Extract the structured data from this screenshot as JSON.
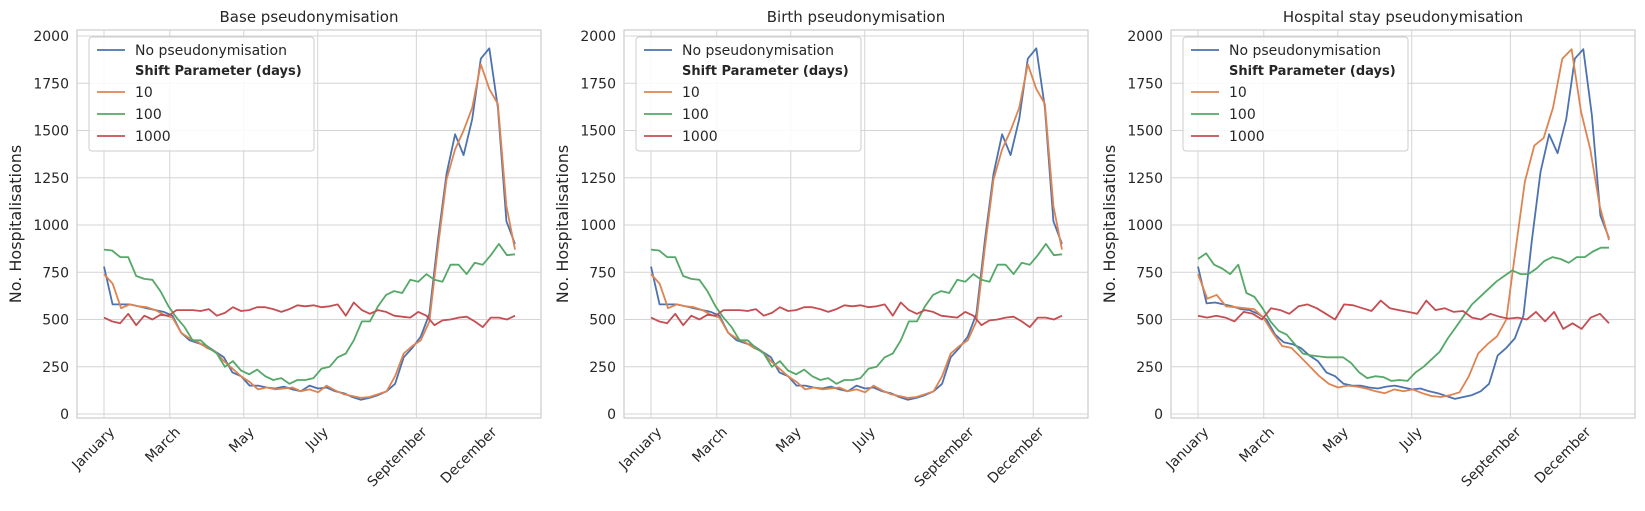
{
  "chart_data": [
    {
      "type": "line",
      "title": "Base pseudonymisation",
      "xlabel": "",
      "ylabel": "No. Hospitalisations",
      "x_ticks": [
        "January",
        "March",
        "May",
        "July",
        "September",
        "December"
      ],
      "ylim": [
        0,
        2000
      ],
      "y_ticks": [
        0,
        250,
        500,
        750,
        1000,
        1250,
        1500,
        1750,
        2000
      ],
      "grid": true,
      "legend": {
        "placement": "top-left",
        "title": "Shift Parameter (days)"
      },
      "series": [
        {
          "name": "No pseudonymisation",
          "color": "#4c72b0",
          "values": [
            780,
            580,
            580,
            580,
            570,
            560,
            550,
            540,
            520,
            430,
            390,
            375,
            360,
            330,
            300,
            220,
            200,
            150,
            150,
            140,
            135,
            145,
            130,
            120,
            150,
            135,
            140,
            120,
            110,
            90,
            75,
            85,
            100,
            120,
            160,
            300,
            350,
            410,
            530,
            920,
            1270,
            1480,
            1370,
            1560,
            1880,
            1935,
            1620,
            1020,
            900
          ]
        },
        {
          "name": "10",
          "color": "#dd8452",
          "values": [
            740,
            690,
            560,
            580,
            570,
            565,
            550,
            525,
            510,
            430,
            400,
            380,
            350,
            330,
            280,
            240,
            200,
            170,
            130,
            140,
            130,
            135,
            140,
            120,
            130,
            115,
            150,
            125,
            105,
            95,
            85,
            90,
            105,
            120,
            200,
            320,
            360,
            390,
            490,
            880,
            1240,
            1400,
            1500,
            1620,
            1850,
            1720,
            1640,
            1100,
            870
          ]
        },
        {
          "name": "100",
          "color": "#55a868",
          "values": [
            870,
            865,
            830,
            830,
            730,
            715,
            710,
            650,
            570,
            510,
            460,
            390,
            390,
            350,
            320,
            250,
            280,
            230,
            210,
            235,
            200,
            180,
            190,
            160,
            180,
            180,
            190,
            240,
            250,
            300,
            320,
            390,
            490,
            490,
            570,
            630,
            650,
            640,
            710,
            700,
            740,
            710,
            700,
            790,
            790,
            740,
            800,
            790,
            840,
            900,
            840,
            845
          ]
        },
        {
          "name": "1000",
          "color": "#c44e52",
          "values": [
            510,
            490,
            480,
            530,
            470,
            520,
            500,
            525,
            520,
            550,
            550,
            550,
            545,
            555,
            520,
            535,
            565,
            545,
            550,
            565,
            565,
            555,
            540,
            555,
            575,
            570,
            575,
            565,
            570,
            580,
            520,
            590,
            550,
            530,
            550,
            540,
            520,
            515,
            510,
            540,
            520,
            470,
            495,
            500,
            510,
            515,
            490,
            460,
            510,
            510,
            500,
            520
          ]
        }
      ]
    },
    {
      "type": "line",
      "title": "Birth pseudonymisation",
      "xlabel": "",
      "ylabel": "No. Hospitalisations",
      "x_ticks": [
        "January",
        "March",
        "May",
        "July",
        "September",
        "December"
      ],
      "ylim": [
        0,
        2000
      ],
      "y_ticks": [
        0,
        250,
        500,
        750,
        1000,
        1250,
        1500,
        1750,
        2000
      ],
      "grid": true,
      "legend": {
        "placement": "top-left",
        "title": "Shift Parameter (days)"
      },
      "series": [
        {
          "name": "No pseudonymisation",
          "color": "#4c72b0",
          "values": [
            780,
            580,
            580,
            580,
            570,
            560,
            550,
            540,
            520,
            430,
            390,
            375,
            360,
            330,
            300,
            220,
            200,
            150,
            150,
            140,
            135,
            145,
            130,
            120,
            150,
            135,
            140,
            120,
            110,
            90,
            75,
            85,
            100,
            120,
            160,
            300,
            350,
            410,
            530,
            920,
            1270,
            1480,
            1370,
            1560,
            1880,
            1935,
            1620,
            1020,
            900
          ]
        },
        {
          "name": "10",
          "color": "#dd8452",
          "values": [
            740,
            690,
            560,
            580,
            570,
            565,
            550,
            525,
            510,
            430,
            400,
            380,
            350,
            330,
            280,
            240,
            200,
            170,
            130,
            140,
            130,
            135,
            140,
            120,
            130,
            115,
            150,
            125,
            105,
            95,
            85,
            90,
            105,
            120,
            200,
            320,
            360,
            390,
            490,
            880,
            1240,
            1400,
            1500,
            1620,
            1850,
            1720,
            1640,
            1100,
            870
          ]
        },
        {
          "name": "100",
          "color": "#55a868",
          "values": [
            870,
            865,
            830,
            830,
            730,
            715,
            710,
            650,
            570,
            510,
            460,
            390,
            390,
            350,
            320,
            250,
            280,
            230,
            210,
            235,
            200,
            180,
            190,
            160,
            180,
            180,
            190,
            240,
            250,
            300,
            320,
            390,
            490,
            490,
            570,
            630,
            650,
            640,
            710,
            700,
            740,
            710,
            700,
            790,
            790,
            740,
            800,
            790,
            840,
            900,
            840,
            845
          ]
        },
        {
          "name": "1000",
          "color": "#c44e52",
          "values": [
            510,
            490,
            480,
            530,
            470,
            520,
            500,
            525,
            520,
            550,
            550,
            550,
            545,
            555,
            520,
            535,
            565,
            545,
            550,
            565,
            565,
            555,
            540,
            555,
            575,
            570,
            575,
            565,
            570,
            580,
            520,
            590,
            550,
            530,
            550,
            540,
            520,
            515,
            510,
            540,
            520,
            470,
            495,
            500,
            510,
            515,
            490,
            460,
            510,
            510,
            500,
            520
          ]
        }
      ]
    },
    {
      "type": "line",
      "title": "Hospital stay pseudonymisation",
      "xlabel": "",
      "ylabel": "No. Hospitalisations",
      "x_ticks": [
        "January",
        "March",
        "May",
        "July",
        "September",
        "December"
      ],
      "ylim": [
        0,
        2000
      ],
      "y_ticks": [
        0,
        250,
        500,
        750,
        1000,
        1250,
        1500,
        1750,
        2000
      ],
      "grid": true,
      "legend": {
        "placement": "top-left",
        "title": "Shift Parameter (days)"
      },
      "series": [
        {
          "name": "No pseudonymisation",
          "color": "#4c72b0",
          "values": [
            780,
            585,
            590,
            580,
            570,
            555,
            550,
            530,
            500,
            420,
            380,
            370,
            350,
            310,
            280,
            220,
            200,
            160,
            150,
            150,
            140,
            135,
            145,
            150,
            140,
            130,
            135,
            120,
            110,
            95,
            80,
            90,
            100,
            120,
            160,
            310,
            350,
            400,
            520,
            920,
            1280,
            1480,
            1380,
            1560,
            1880,
            1930,
            1580,
            1050,
            930
          ]
        },
        {
          "name": "10",
          "color": "#dd8452",
          "values": [
            740,
            610,
            630,
            570,
            565,
            560,
            555,
            510,
            430,
            360,
            350,
            300,
            250,
            200,
            160,
            140,
            150,
            145,
            135,
            120,
            110,
            130,
            120,
            130,
            110,
            95,
            90,
            100,
            115,
            200,
            320,
            370,
            410,
            500,
            870,
            1230,
            1420,
            1460,
            1620,
            1880,
            1930,
            1600,
            1400,
            1100,
            920
          ]
        },
        {
          "name": "100",
          "color": "#55a868",
          "values": [
            820,
            850,
            790,
            770,
            740,
            790,
            640,
            620,
            560,
            490,
            440,
            420,
            370,
            320,
            310,
            305,
            300,
            300,
            300,
            270,
            220,
            190,
            200,
            195,
            175,
            180,
            175,
            220,
            250,
            290,
            330,
            400,
            460,
            520,
            580,
            620,
            660,
            700,
            730,
            760,
            740,
            740,
            770,
            810,
            830,
            820,
            800,
            830,
            830,
            860,
            880,
            880
          ]
        },
        {
          "name": "1000",
          "color": "#c44e52",
          "values": [
            520,
            510,
            520,
            510,
            490,
            540,
            530,
            500,
            560,
            550,
            530,
            570,
            580,
            560,
            530,
            500,
            580,
            575,
            560,
            545,
            600,
            560,
            550,
            540,
            530,
            600,
            550,
            560,
            540,
            545,
            510,
            500,
            530,
            515,
            505,
            510,
            500,
            540,
            490,
            540,
            450,
            480,
            450,
            510,
            530,
            480
          ]
        }
      ]
    }
  ]
}
